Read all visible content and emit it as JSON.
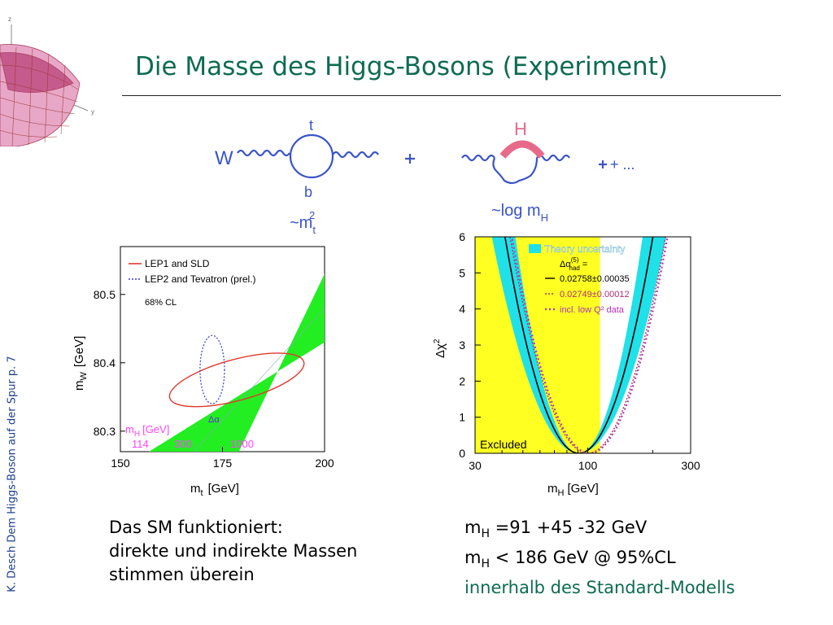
{
  "slide": {
    "title": "Die Masse des Higgs-Bosons (Experiment)",
    "side_text": "K. Desch Dem Higgs-Boson auf der Spur p. 7",
    "colors": {
      "title": "#0e6b52",
      "side": "#1b3f8f",
      "diagram_ink": "#3a54c8",
      "higgs_blob": "#e86a8a"
    }
  },
  "feynman": {
    "w_label": "W",
    "top_label": "t",
    "bottom_label": "b",
    "plus": "+",
    "higgs_label": "H",
    "ellipsis": "+ ...",
    "mt_scaling": "~m",
    "mt_sub": "t",
    "mt_sup": "2",
    "mh_scaling": "~log m",
    "mh_sub": "H"
  },
  "left_text": {
    "line1": "Das SM funktioniert:",
    "line2": "direkte und indirekte Massen",
    "line3": "stimmen überein"
  },
  "right_text": {
    "l1_pre": "m",
    "l1_sub": "H",
    "l1_post": " =91 +45 -32 GeV",
    "l2_pre": "m",
    "l2_sub": "H",
    "l2_post": " < 186 GeV @ 95%CL",
    "line3": "innerhalb des Standard-Modells"
  },
  "chart_data": [
    {
      "type": "scatter",
      "xlabel": "m",
      "xlabel_sub": "t",
      "xlabel_unit": "[GeV]",
      "ylabel": "m",
      "ylabel_sub": "W",
      "ylabel_unit": "[GeV]",
      "xlim": [
        150,
        200
      ],
      "ylim": [
        80.27,
        80.57
      ],
      "xticks": [
        150,
        175,
        200
      ],
      "yticks": [
        80.3,
        80.4,
        80.5
      ],
      "legend": [
        {
          "name": "LEP1 and SLD",
          "color": "#e03a2e",
          "style": "solid"
        },
        {
          "name": "LEP2 and Tevatron (prel.)",
          "color": "#3a3ad8",
          "style": "dotted"
        }
      ],
      "cl_label": "68% CL",
      "band": {
        "color": "#22ee22",
        "mh_label": "m",
        "mh_sub": "H",
        "mh_unit": "[GeV]",
        "mh_values": [
          "114",
          "300",
          "1000"
        ],
        "delta_alpha_label": "Δα",
        "lower_edge": [
          [
            157,
            80.27
          ],
          [
            200,
            80.43
          ]
        ],
        "upper_edge": [
          [
            179,
            80.27
          ],
          [
            200,
            80.53
          ]
        ]
      },
      "indirect_ellipse": {
        "center": [
          178.5,
          80.375
        ],
        "semi_x": 17,
        "semi_y": 0.03,
        "color": "#e03a2e"
      },
      "direct_ellipse": {
        "center": [
          172.5,
          80.39
        ],
        "semi_x": 3,
        "semi_y": 0.05,
        "color": "#3a3ad8"
      }
    },
    {
      "type": "line",
      "xlabel": "m",
      "xlabel_sub": "H",
      "xlabel_unit": "[GeV]",
      "ylabel": "Δχ",
      "ylabel_sup": "2",
      "x_log": true,
      "xlim": [
        30,
        300
      ],
      "ylim": [
        0,
        6
      ],
      "xticks": [
        30,
        100,
        300
      ],
      "yticks": [
        0,
        1,
        2,
        3,
        4,
        5,
        6
      ],
      "excluded_label": "Excluded",
      "excluded_range": [
        30,
        114
      ],
      "legend": [
        {
          "name": "Theory uncertainty",
          "color": "#20e0e8",
          "style": "box"
        },
        {
          "name": "Δα",
          "sup": "(5)",
          "sub": "had",
          "suffix": "=",
          "style": "header"
        },
        {
          "name": "0.02758±0.00035",
          "color": "#000000",
          "style": "solid"
        },
        {
          "name": "0.02749±0.00012",
          "color": "#b23070",
          "style": "dotted"
        },
        {
          "name": "incl. low Q² data",
          "color": "#b233b0",
          "style": "dotted"
        }
      ],
      "series": [
        {
          "name": "0.02758±0.00035",
          "min_x": 91,
          "color": "#000000"
        },
        {
          "name": "0.02749±0.00012",
          "min_x": 100,
          "color": "#b23070"
        },
        {
          "name": "incl. low Q² data",
          "min_x": 102,
          "color": "#b233b0"
        }
      ]
    }
  ]
}
